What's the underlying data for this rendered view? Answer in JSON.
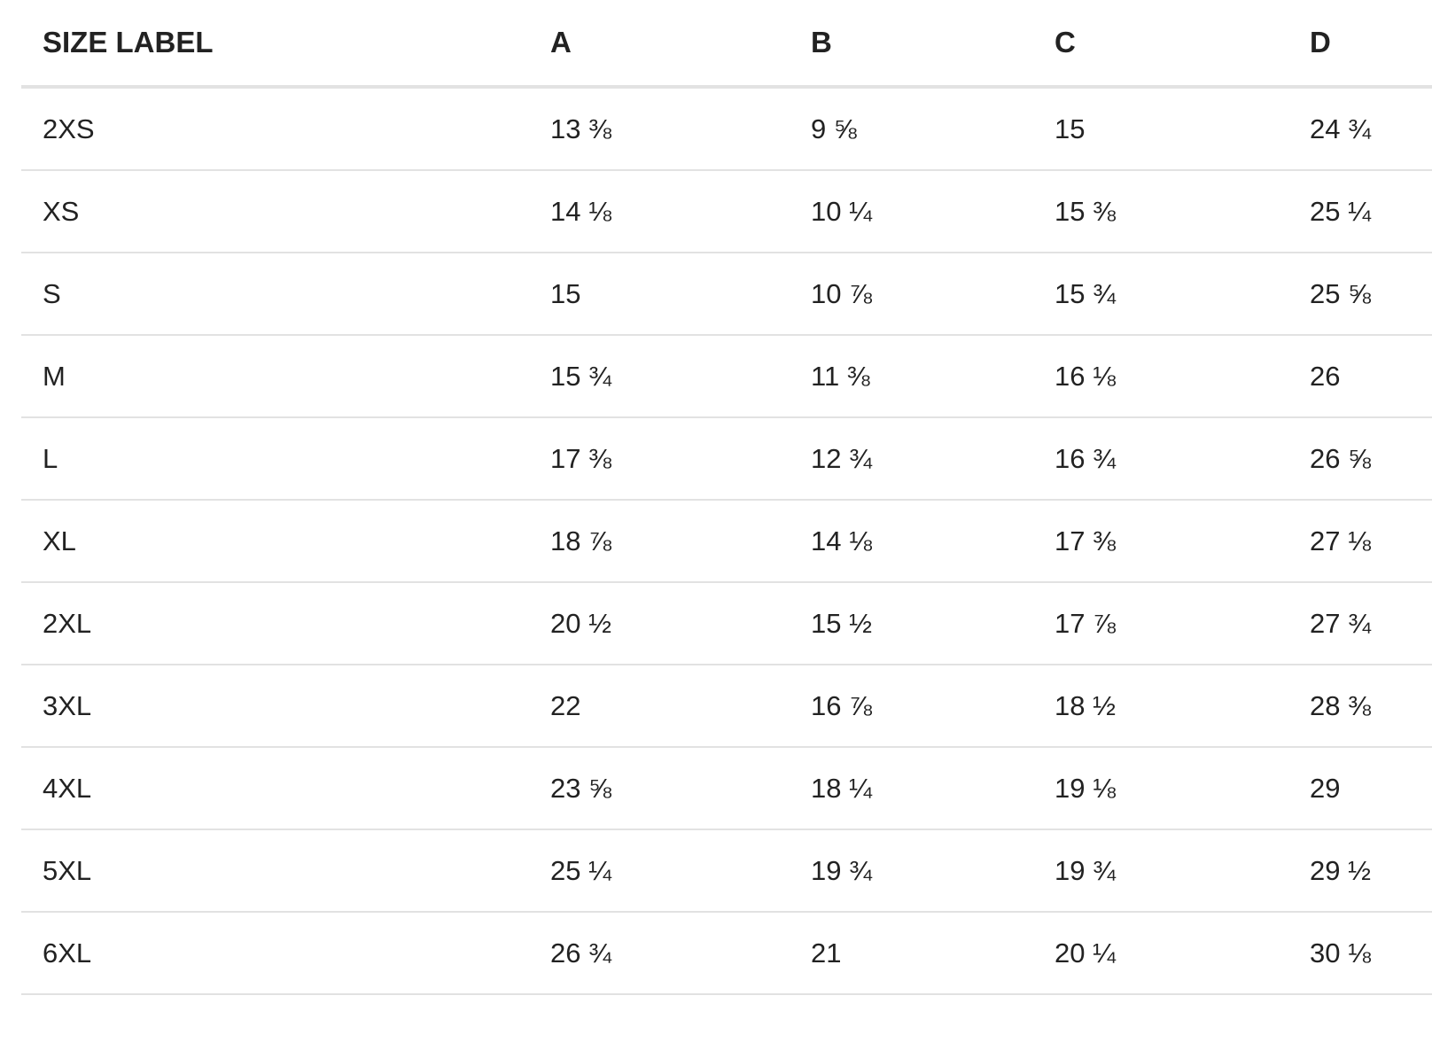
{
  "size_chart": {
    "columns": [
      "SIZE LABEL",
      "A",
      "B",
      "C",
      "D"
    ],
    "rows": [
      [
        "2XS",
        "13 ⅜",
        "9 ⅝",
        "15",
        "24 ¾"
      ],
      [
        "XS",
        "14 ⅛",
        "10 ¼",
        "15 ⅜",
        "25 ¼"
      ],
      [
        "S",
        "15",
        "10 ⅞",
        "15 ¾",
        "25 ⅝"
      ],
      [
        "M",
        "15 ¾",
        "11 ⅜",
        "16 ⅛",
        "26"
      ],
      [
        "L",
        "17 ⅜",
        "12 ¾",
        "16 ¾",
        "26 ⅝"
      ],
      [
        "XL",
        "18 ⅞",
        "14 ⅛",
        "17 ⅜",
        "27 ⅛"
      ],
      [
        "2XL",
        "20 ½",
        "15 ½",
        "17 ⅞",
        "27 ¾"
      ],
      [
        "3XL",
        "22",
        "16 ⅞",
        "18 ½",
        "28 ⅜"
      ],
      [
        "4XL",
        "23 ⅝",
        "18 ¼",
        "19 ⅛",
        "29"
      ],
      [
        "5XL",
        "25 ¼",
        "19 ¾",
        "19 ¾",
        "29 ½"
      ],
      [
        "6XL",
        "26 ¾",
        "21",
        "20 ¼",
        "30 ⅛"
      ]
    ]
  }
}
